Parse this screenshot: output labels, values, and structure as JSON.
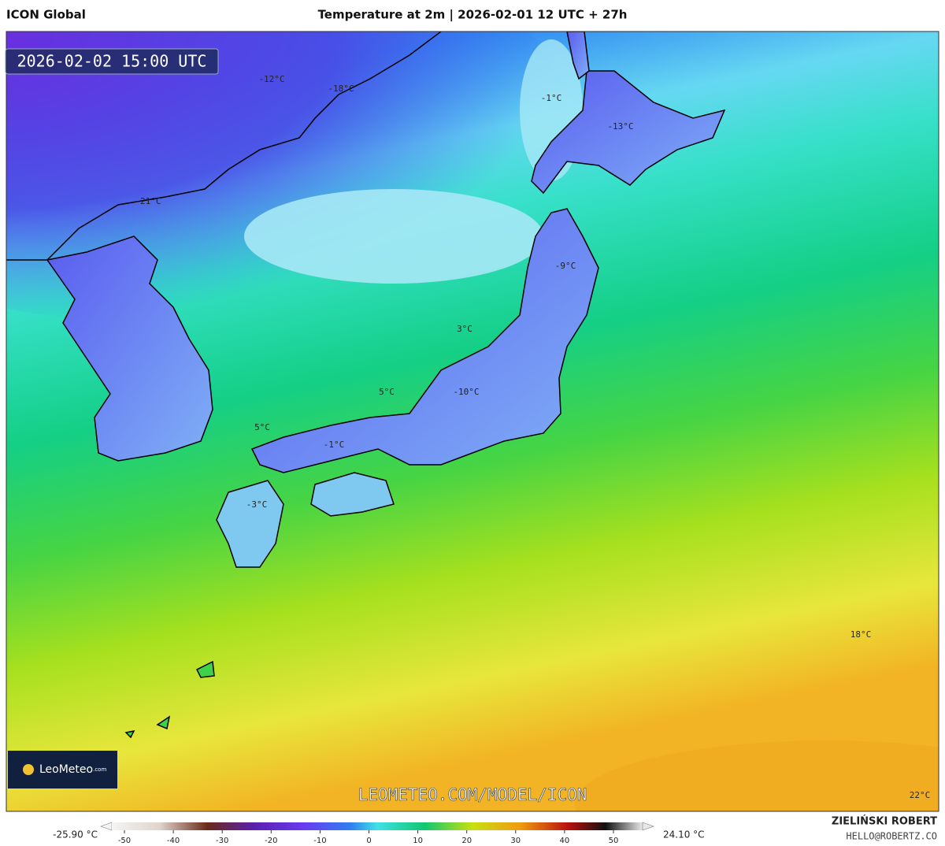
{
  "header": {
    "model": "ICON Global",
    "title": "Temperature at 2m | 2026-02-01 12 UTC + 27h"
  },
  "map": {
    "valid_time": "2026-02-02 15:00 UTC",
    "watermark": "LEOMETEO.COM/MODEL/ICON",
    "logo": "LeoMeteo",
    "logo_suffix": ".com",
    "labels": [
      "-12°C",
      "-18°C",
      "-1°C",
      "-13°C",
      "-21°C",
      "-9°C",
      "3°C",
      "5°C",
      "-10°C",
      "5°C",
      "-1°C",
      "-3°C",
      "18°C",
      "22°C"
    ]
  },
  "legend": {
    "min": "-25.90 °C",
    "max": "24.10 °C",
    "ticks": [
      -50,
      -40,
      -30,
      -20,
      -10,
      0,
      10,
      20,
      30,
      40,
      50
    ]
  },
  "footer": {
    "author": "ZIELIŃSKI ROBERT",
    "email": "HELLO@ROBERTZ.CO"
  }
}
